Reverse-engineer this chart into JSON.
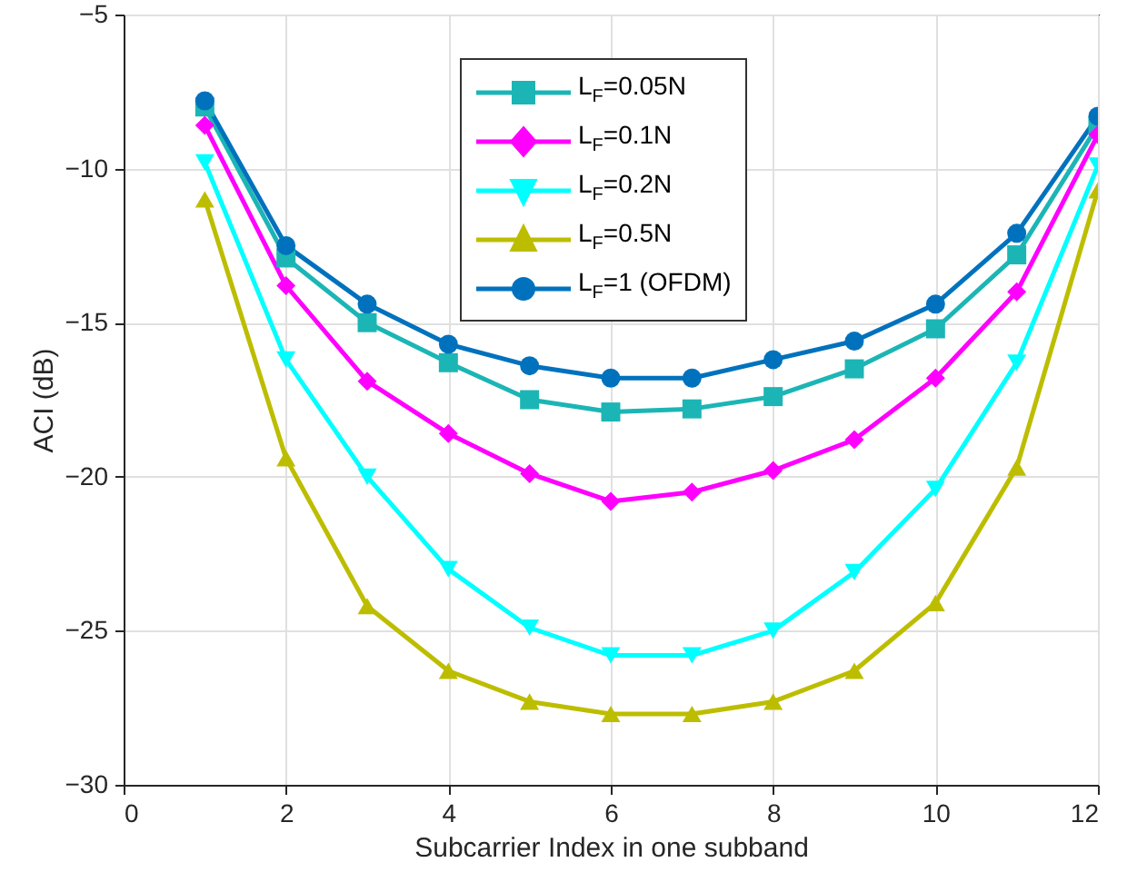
{
  "chart_data": {
    "type": "line",
    "xlabel": "Subcarrier Index in one subband",
    "ylabel": "ACI (dB)",
    "x": [
      1,
      2,
      3,
      4,
      5,
      6,
      7,
      8,
      9,
      10,
      11,
      12
    ],
    "xlim": [
      0,
      12
    ],
    "xticks": [
      0,
      2,
      4,
      6,
      8,
      10,
      12
    ],
    "ylim": [
      -30,
      -5
    ],
    "yticks": [
      -30,
      -25,
      -20,
      -15,
      -10,
      -5
    ],
    "grid": true,
    "legend": "top",
    "line_style": "solid",
    "series": [
      {
        "name": "L$_{F}$=0.05N",
        "color": "#1cb5b5",
        "marker": "square",
        "values": [
          -8.0,
          -12.9,
          -15.0,
          -16.3,
          -17.5,
          -17.9,
          -17.8,
          -17.4,
          -16.5,
          -15.2,
          -12.8,
          -8.6
        ]
      },
      {
        "name": "L$_{F}$=0.1N",
        "color": "#ff00ff",
        "marker": "diamond",
        "values": [
          -8.6,
          -13.8,
          -16.9,
          -18.6,
          -19.9,
          -20.8,
          -20.5,
          -19.8,
          -18.8,
          -16.8,
          -14.0,
          -8.9
        ]
      },
      {
        "name": "L$_{F}$=0.2N",
        "color": "#00ffff",
        "marker": "triangle-down",
        "values": [
          -9.8,
          -16.2,
          -20.0,
          -23.0,
          -24.9,
          -25.8,
          -25.8,
          -25.0,
          -23.1,
          -20.4,
          -16.3,
          -9.9
        ]
      },
      {
        "name": "L$_{F}$=0.5N",
        "color": "#bdbd00",
        "marker": "triangle",
        "values": [
          -11.0,
          -19.4,
          -24.2,
          -26.3,
          -27.3,
          -27.7,
          -27.7,
          -27.3,
          -26.3,
          -24.1,
          -19.7,
          -10.7
        ]
      },
      {
        "name": "L$_{F}$=1 (OFDM)",
        "color": "#0072bd",
        "marker": "circle",
        "values": [
          -7.8,
          -12.5,
          -14.4,
          -15.7,
          -16.4,
          -16.8,
          -16.8,
          -16.2,
          -15.6,
          -14.4,
          -12.1,
          -8.3
        ]
      }
    ]
  }
}
